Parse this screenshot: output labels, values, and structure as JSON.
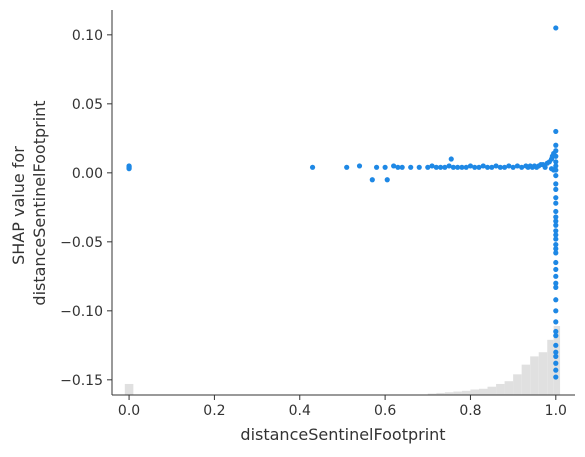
{
  "chart_data": {
    "type": "scatter",
    "title": "",
    "xlabel": "distanceSentinelFootprint",
    "ylabel_lines": [
      "SHAP value for",
      "distanceSentinelFootprint"
    ],
    "xlim": [
      -0.04,
      1.045
    ],
    "ylim": [
      -0.161,
      0.118
    ],
    "xticks": [
      0.0,
      0.2,
      0.4,
      0.6,
      0.8,
      1.0
    ],
    "xtick_labels": [
      "0.0",
      "0.2",
      "0.4",
      "0.6",
      "0.8",
      "1.0"
    ],
    "yticks": [
      0.1,
      0.05,
      0.0,
      -0.05,
      -0.1,
      -0.15
    ],
    "ytick_labels": [
      "0.10",
      "0.05",
      "0.00",
      "−0.05",
      "−0.10",
      "−0.15"
    ],
    "grid": false,
    "colors": {
      "points": "#1E88E5",
      "histogram": "#e0e0e0",
      "axes": "#333333"
    },
    "points": [
      [
        0.0,
        0.003
      ],
      [
        0.0,
        0.004
      ],
      [
        0.0,
        0.005
      ],
      [
        0.0,
        0.0045
      ],
      [
        0.0,
        0.0035
      ],
      [
        0.43,
        0.004
      ],
      [
        0.51,
        0.004
      ],
      [
        0.54,
        0.005
      ],
      [
        0.57,
        -0.005
      ],
      [
        0.58,
        0.004
      ],
      [
        0.6,
        0.004
      ],
      [
        0.605,
        -0.005
      ],
      [
        0.62,
        0.005
      ],
      [
        0.63,
        0.004
      ],
      [
        0.64,
        0.004
      ],
      [
        0.66,
        0.004
      ],
      [
        0.68,
        0.004
      ],
      [
        0.7,
        0.004
      ],
      [
        0.71,
        0.005
      ],
      [
        0.72,
        0.004
      ],
      [
        0.73,
        0.004
      ],
      [
        0.74,
        0.004
      ],
      [
        0.75,
        0.005
      ],
      [
        0.755,
        0.01
      ],
      [
        0.76,
        0.004
      ],
      [
        0.77,
        0.004
      ],
      [
        0.78,
        0.004
      ],
      [
        0.79,
        0.004
      ],
      [
        0.8,
        0.005
      ],
      [
        0.81,
        0.004
      ],
      [
        0.82,
        0.004
      ],
      [
        0.83,
        0.005
      ],
      [
        0.84,
        0.004
      ],
      [
        0.85,
        0.004
      ],
      [
        0.86,
        0.005
      ],
      [
        0.87,
        0.004
      ],
      [
        0.88,
        0.004
      ],
      [
        0.89,
        0.005
      ],
      [
        0.9,
        0.004
      ],
      [
        0.91,
        0.005
      ],
      [
        0.92,
        0.004
      ],
      [
        0.93,
        0.005
      ],
      [
        0.935,
        0.004
      ],
      [
        0.94,
        0.005
      ],
      [
        0.945,
        0.004
      ],
      [
        0.95,
        0.005
      ],
      [
        0.955,
        0.004
      ],
      [
        0.96,
        0.005
      ],
      [
        0.965,
        0.006
      ],
      [
        0.97,
        0.006
      ],
      [
        0.975,
        0.004
      ],
      [
        0.98,
        0.007
      ],
      [
        0.985,
        0.008
      ],
      [
        0.99,
        0.01
      ],
      [
        0.992,
        0.012
      ],
      [
        0.995,
        0.014
      ],
      [
        1.0,
        0.016
      ],
      [
        0.99,
        0.003
      ],
      [
        0.995,
        0.002
      ],
      [
        1.0,
        0.105
      ],
      [
        1.0,
        0.03
      ],
      [
        1.0,
        0.02
      ],
      [
        1.0,
        0.012
      ],
      [
        1.0,
        0.008
      ],
      [
        1.0,
        0.005
      ],
      [
        1.0,
        0.002
      ],
      [
        1.0,
        -0.002
      ],
      [
        1.0,
        -0.008
      ],
      [
        1.0,
        -0.012
      ],
      [
        1.0,
        -0.018
      ],
      [
        1.0,
        -0.022
      ],
      [
        1.0,
        -0.028
      ],
      [
        1.0,
        -0.032
      ],
      [
        1.0,
        -0.035
      ],
      [
        1.0,
        -0.038
      ],
      [
        1.0,
        -0.042
      ],
      [
        1.0,
        -0.045
      ],
      [
        1.0,
        -0.048
      ],
      [
        1.0,
        -0.052
      ],
      [
        1.0,
        -0.055
      ],
      [
        1.0,
        -0.058
      ],
      [
        1.0,
        -0.065
      ],
      [
        1.0,
        -0.07
      ],
      [
        1.0,
        -0.075
      ],
      [
        1.0,
        -0.08
      ],
      [
        1.0,
        -0.083
      ],
      [
        1.0,
        -0.092
      ],
      [
        1.0,
        -0.1
      ],
      [
        1.0,
        -0.108
      ],
      [
        1.0,
        -0.115
      ],
      [
        1.0,
        -0.118
      ],
      [
        1.0,
        -0.125
      ],
      [
        1.0,
        -0.13
      ],
      [
        1.0,
        -0.133
      ],
      [
        1.0,
        -0.138
      ],
      [
        1.0,
        -0.143
      ],
      [
        1.0,
        -0.148
      ]
    ],
    "histogram": {
      "bin_edges": [
        -0.01,
        0.01,
        0.7,
        0.72,
        0.74,
        0.76,
        0.78,
        0.8,
        0.82,
        0.84,
        0.86,
        0.88,
        0.9,
        0.92,
        0.94,
        0.96,
        0.98,
        0.995,
        1.01
      ],
      "heights": [
        0.008,
        0.0,
        0.001,
        0.0015,
        0.002,
        0.0025,
        0.003,
        0.004,
        0.0045,
        0.006,
        0.008,
        0.01,
        0.015,
        0.022,
        0.028,
        0.031,
        0.04,
        0.05
      ]
    }
  }
}
